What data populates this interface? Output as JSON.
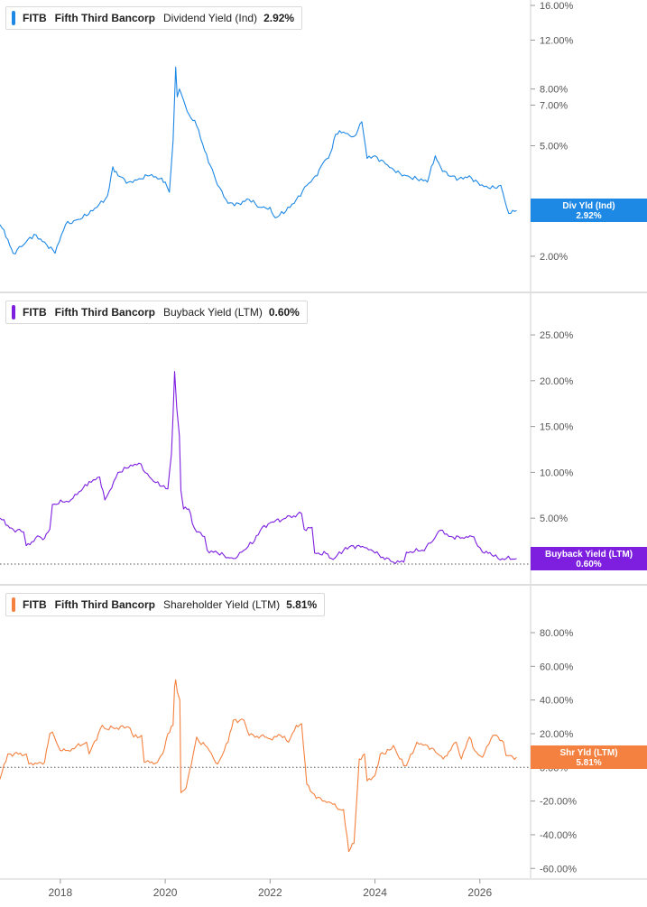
{
  "colors": {
    "dividend": "#1e88e5",
    "buyback": "#7e1fe0",
    "shareholder": "#f4813f",
    "axis_text": "#555555",
    "grid_separator": "#bdbdbd"
  },
  "chart_data": [
    {
      "type": "line",
      "ticker": "FITB",
      "company": "Fifth Third Bancorp",
      "metric": "Dividend Yield (Ind)",
      "current_value": "2.92%",
      "tag_label": "Div Yld (Ind)",
      "tag_value": "2.92%",
      "y_scale": "log",
      "ylim": [
        1.55,
        16.0
      ],
      "ytick_values": [
        16,
        12,
        8,
        7,
        5,
        2
      ],
      "ytick_labels": [
        "16.00%",
        "12.00%",
        "8.00%",
        "7.00%",
        "5.00%",
        "2.00%"
      ],
      "reference_line": null,
      "x": [
        2016.85,
        2017.0,
        2017.1,
        2017.3,
        2017.5,
        2017.7,
        2017.9,
        2018.1,
        2018.3,
        2018.5,
        2018.7,
        2018.9,
        2019.0,
        2019.1,
        2019.3,
        2019.5,
        2019.7,
        2019.9,
        2020.0,
        2020.08,
        2020.15,
        2020.2,
        2020.23,
        2020.27,
        2020.35,
        2020.45,
        2020.6,
        2020.75,
        2020.9,
        2021.0,
        2021.2,
        2021.4,
        2021.6,
        2021.8,
        2022.0,
        2022.1,
        2022.3,
        2022.5,
        2022.7,
        2022.9,
        2023.0,
        2023.15,
        2023.25,
        2023.4,
        2023.6,
        2023.75,
        2023.85,
        2024.0,
        2024.2,
        2024.4,
        2024.6,
        2024.8,
        2025.0,
        2025.15,
        2025.25,
        2025.4,
        2025.6,
        2025.8,
        2026.0,
        2026.2,
        2026.4,
        2026.55,
        2026.7
      ],
      "y": [
        2.6,
        2.3,
        2.05,
        2.2,
        2.4,
        2.25,
        2.05,
        2.6,
        2.7,
        2.8,
        3.0,
        3.3,
        4.2,
        3.9,
        3.7,
        3.8,
        3.9,
        3.8,
        3.7,
        3.4,
        5.2,
        9.6,
        7.5,
        8.0,
        7.3,
        6.5,
        5.9,
        4.8,
        4.1,
        3.6,
        3.1,
        3.1,
        3.2,
        3.0,
        3.0,
        2.75,
        2.9,
        3.2,
        3.6,
        3.9,
        4.3,
        4.7,
        5.5,
        5.6,
        5.4,
        6.1,
        4.5,
        4.6,
        4.3,
        4.0,
        3.9,
        3.8,
        3.7,
        4.6,
        4.2,
        3.9,
        3.8,
        3.9,
        3.6,
        3.5,
        3.6,
        2.85,
        2.92
      ]
    },
    {
      "type": "line",
      "ticker": "FITB",
      "company": "Fifth Third Bancorp",
      "metric": "Buyback Yield (LTM)",
      "current_value": "0.60%",
      "tag_label": "Buyback Yield (LTM)",
      "tag_value": "0.60%",
      "y_scale": "linear",
      "ylim": [
        -0.3,
        25.5
      ],
      "ytick_values": [
        25,
        20,
        15,
        10,
        5
      ],
      "ytick_labels": [
        "25.00%",
        "20.00%",
        "15.00%",
        "10.00%",
        "5.00%"
      ],
      "reference_line": 0,
      "x": [
        2016.85,
        2017.0,
        2017.1,
        2017.3,
        2017.35,
        2017.6,
        2017.7,
        2017.8,
        2017.85,
        2018.2,
        2018.4,
        2018.55,
        2018.75,
        2018.85,
        2018.9,
        2019.1,
        2019.3,
        2019.5,
        2019.7,
        2019.9,
        2020.05,
        2020.12,
        2020.18,
        2020.22,
        2020.27,
        2020.3,
        2020.35,
        2020.45,
        2020.55,
        2020.6,
        2020.75,
        2020.8,
        2021.0,
        2021.2,
        2021.3,
        2021.5,
        2021.7,
        2021.85,
        2022.0,
        2022.3,
        2022.6,
        2022.65,
        2022.8,
        2022.85,
        2023.1,
        2023.2,
        2023.4,
        2023.55,
        2023.8,
        2024.0,
        2024.3,
        2024.35,
        2024.55,
        2024.6,
        2024.9,
        2025.1,
        2025.25,
        2025.45,
        2025.7,
        2025.85,
        2026.0,
        2026.05,
        2026.3,
        2026.35,
        2026.7
      ],
      "y": [
        5.0,
        4.2,
        3.8,
        3.5,
        2.0,
        3.0,
        2.8,
        3.8,
        6.5,
        7.0,
        8.0,
        9.0,
        9.5,
        7.0,
        7.5,
        10.0,
        10.5,
        11.0,
        9.5,
        8.5,
        8.2,
        12.0,
        21.0,
        17.0,
        14.0,
        8.0,
        6.0,
        6.0,
        4.0,
        3.5,
        3.0,
        1.5,
        1.2,
        0.7,
        0.6,
        1.5,
        2.5,
        4.0,
        4.5,
        5.0,
        5.5,
        3.8,
        4.0,
        1.2,
        1.1,
        0.5,
        1.5,
        2.0,
        1.8,
        1.2,
        0.3,
        0.2,
        0.2,
        1.3,
        1.5,
        2.5,
        3.7,
        3.0,
        2.8,
        3.0,
        1.8,
        1.3,
        1.0,
        0.6,
        0.6
      ]
    },
    {
      "type": "line",
      "ticker": "FITB",
      "company": "Fifth Third Bancorp",
      "metric": "Shareholder Yield (LTM)",
      "current_value": "5.81%",
      "tag_label": "Shr Yld (LTM)",
      "tag_value": "5.81%",
      "y_scale": "linear",
      "ylim": [
        -62,
        95
      ],
      "ytick_values": [
        80,
        60,
        40,
        20,
        0,
        -20,
        -40,
        -60
      ],
      "ytick_labels": [
        "80.00%",
        "60.00%",
        "40.00%",
        "20.00%",
        "0.00%",
        "-20.00%",
        "-40.00%",
        "-60.00%"
      ],
      "reference_line": 0,
      "x": [
        2016.85,
        2017.0,
        2017.05,
        2017.35,
        2017.4,
        2017.6,
        2017.7,
        2017.8,
        2017.85,
        2018.0,
        2018.1,
        2018.15,
        2018.5,
        2018.55,
        2018.8,
        2018.85,
        2019.3,
        2019.4,
        2019.55,
        2019.6,
        2019.85,
        2019.95,
        2020.05,
        2020.15,
        2020.18,
        2020.2,
        2020.23,
        2020.28,
        2020.3,
        2020.4,
        2020.5,
        2020.6,
        2020.65,
        2020.8,
        2021.0,
        2021.05,
        2021.2,
        2021.3,
        2021.5,
        2021.6,
        2021.9,
        2022.0,
        2022.2,
        2022.35,
        2022.5,
        2022.6,
        2022.7,
        2022.8,
        2023.0,
        2023.2,
        2023.3,
        2023.4,
        2023.5,
        2023.6,
        2023.7,
        2023.8,
        2023.85,
        2024.0,
        2024.1,
        2024.2,
        2024.35,
        2024.55,
        2024.6,
        2024.8,
        2025.0,
        2025.2,
        2025.3,
        2025.55,
        2025.65,
        2025.8,
        2025.9,
        2026.05,
        2026.25,
        2026.35,
        2026.45,
        2026.5,
        2026.7
      ],
      "y": [
        -7,
        8,
        8,
        8,
        2,
        3,
        3,
        20,
        21,
        10,
        10,
        10,
        15,
        8,
        25,
        23,
        24,
        18,
        19,
        3,
        3,
        8,
        20,
        25,
        48,
        52,
        45,
        40,
        -15,
        -12,
        2,
        18,
        15,
        12,
        2,
        5,
        15,
        28,
        28,
        19,
        18,
        17,
        19,
        15,
        25,
        26,
        -10,
        -15,
        -20,
        -22,
        -25,
        -25,
        -50,
        -45,
        5,
        8,
        -8,
        -5,
        8,
        8,
        13,
        1,
        1,
        15,
        13,
        8,
        5,
        15,
        5,
        18,
        10,
        6,
        19,
        18,
        15,
        7,
        6
      ]
    }
  ],
  "x_axis": {
    "tick_values": [
      2018,
      2020,
      2022,
      2024,
      2026
    ],
    "tick_labels": [
      "2018",
      "2020",
      "2022",
      "2024",
      "2026"
    ]
  }
}
